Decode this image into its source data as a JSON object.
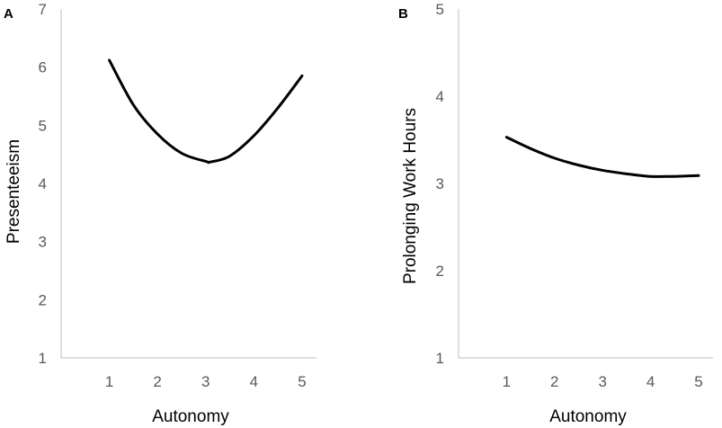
{
  "chart_data": [
    {
      "type": "line",
      "panel_label": "A",
      "xlabel": "Autonomy",
      "ylabel": "Presenteeism",
      "xlim": [
        0,
        5.3
      ],
      "ylim": [
        1,
        7
      ],
      "x_ticks": [
        1,
        2,
        3,
        4,
        5
      ],
      "y_ticks": [
        1,
        2,
        3,
        4,
        5,
        6,
        7
      ],
      "grid": false,
      "series": [
        {
          "x": [
            1,
            1.5,
            2,
            2.5,
            3,
            3.1,
            3.5,
            4,
            4.5,
            5
          ],
          "values": [
            6.12,
            5.35,
            4.85,
            4.52,
            4.38,
            4.37,
            4.47,
            4.82,
            5.3,
            5.85
          ]
        }
      ]
    },
    {
      "type": "line",
      "panel_label": "B",
      "xlabel": "Autonomy",
      "ylabel": "Prolonging Work Hours",
      "xlim": [
        0,
        5.3
      ],
      "ylim": [
        1,
        5
      ],
      "x_ticks": [
        1,
        2,
        3,
        4,
        5
      ],
      "y_ticks": [
        1,
        2,
        3,
        4,
        5
      ],
      "grid": false,
      "series": [
        {
          "x": [
            1,
            1.5,
            2,
            2.5,
            3,
            3.5,
            4,
            4.3,
            4.5,
            5
          ],
          "values": [
            3.53,
            3.4,
            3.29,
            3.21,
            3.15,
            3.11,
            3.08,
            3.08,
            3.08,
            3.09
          ]
        }
      ]
    }
  ]
}
